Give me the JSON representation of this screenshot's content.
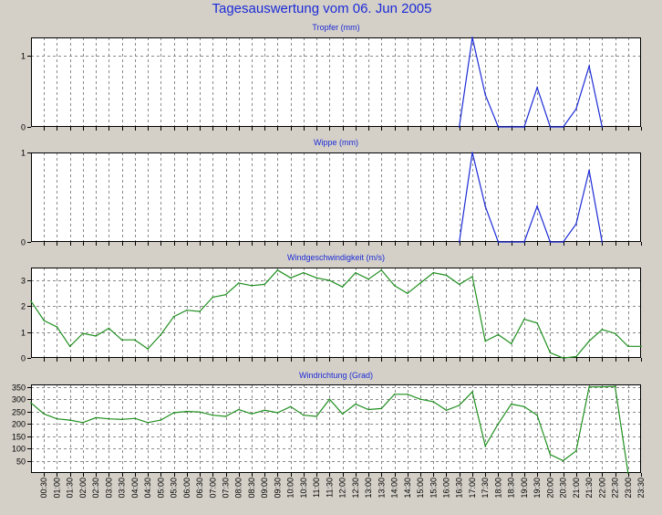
{
  "title": "Tagesauswertung vom 06. Jun 2005",
  "colors": {
    "background": "#d4d0c8",
    "plot_bg": "#ffffff",
    "title": "#1c2bd6",
    "series_blue": "#1c2bd6",
    "series_green": "#1f8f1f",
    "grid": "#8a8a8a"
  },
  "chart_data": [
    {
      "type": "line",
      "title": "Tropfer (mm)",
      "ylim": [
        0,
        1.25
      ],
      "yticks": [
        0,
        1
      ],
      "ytick_labels": [
        "0",
        "1"
      ],
      "grid": true,
      "color": "#1c2bd6",
      "points": [
        {
          "t": "16:30",
          "v": 0
        },
        {
          "t": "17:00",
          "v": 1.25
        },
        {
          "t": "17:30",
          "v": 0.45
        },
        {
          "t": "18:00",
          "v": 0
        },
        {
          "t": "19:00",
          "v": 0
        },
        {
          "t": "19:30",
          "v": 0.55
        },
        {
          "t": "20:00",
          "v": 0
        },
        {
          "t": "20:30",
          "v": 0
        },
        {
          "t": "21:00",
          "v": 0.25
        },
        {
          "t": "21:30",
          "v": 0.85
        },
        {
          "t": "22:00",
          "v": 0
        }
      ]
    },
    {
      "type": "line",
      "title": "Wippe (mm)",
      "ylim": [
        0,
        1
      ],
      "yticks": [
        0,
        1
      ],
      "ytick_labels": [
        "0",
        "1"
      ],
      "grid": true,
      "color": "#1c2bd6",
      "points": [
        {
          "t": "16:30",
          "v": 0
        },
        {
          "t": "17:00",
          "v": 1.0
        },
        {
          "t": "17:30",
          "v": 0.4
        },
        {
          "t": "18:00",
          "v": 0
        },
        {
          "t": "19:00",
          "v": 0
        },
        {
          "t": "19:30",
          "v": 0.4
        },
        {
          "t": "20:00",
          "v": 0
        },
        {
          "t": "20:30",
          "v": 0
        },
        {
          "t": "21:00",
          "v": 0.2
        },
        {
          "t": "21:30",
          "v": 0.8
        },
        {
          "t": "22:00",
          "v": 0
        }
      ]
    },
    {
      "type": "line",
      "title": "Windgeschwindigkeit (m/s)",
      "ylim": [
        0,
        3.5
      ],
      "yticks": [
        0,
        1,
        2,
        3
      ],
      "ytick_labels": [
        "0",
        "1",
        "2",
        "3"
      ],
      "grid": true,
      "color": "#1f8f1f",
      "points": [
        {
          "t": "00:00",
          "v": 2.2
        },
        {
          "t": "00:30",
          "v": 1.45
        },
        {
          "t": "01:00",
          "v": 1.2
        },
        {
          "t": "01:30",
          "v": 0.45
        },
        {
          "t": "02:00",
          "v": 0.95
        },
        {
          "t": "02:30",
          "v": 0.85
        },
        {
          "t": "03:00",
          "v": 1.15
        },
        {
          "t": "03:30",
          "v": 0.7
        },
        {
          "t": "04:00",
          "v": 0.7
        },
        {
          "t": "04:30",
          "v": 0.35
        },
        {
          "t": "05:00",
          "v": 0.9
        },
        {
          "t": "05:30",
          "v": 1.6
        },
        {
          "t": "06:00",
          "v": 1.85
        },
        {
          "t": "06:30",
          "v": 1.8
        },
        {
          "t": "07:00",
          "v": 2.35
        },
        {
          "t": "07:30",
          "v": 2.45
        },
        {
          "t": "08:00",
          "v": 2.9
        },
        {
          "t": "08:30",
          "v": 2.8
        },
        {
          "t": "09:00",
          "v": 2.85
        },
        {
          "t": "09:30",
          "v": 3.4
        },
        {
          "t": "10:00",
          "v": 3.1
        },
        {
          "t": "10:30",
          "v": 3.3
        },
        {
          "t": "11:00",
          "v": 3.1
        },
        {
          "t": "11:30",
          "v": 3.0
        },
        {
          "t": "12:00",
          "v": 2.75
        },
        {
          "t": "12:30",
          "v": 3.3
        },
        {
          "t": "13:00",
          "v": 3.05
        },
        {
          "t": "13:30",
          "v": 3.4
        },
        {
          "t": "14:00",
          "v": 2.8
        },
        {
          "t": "14:30",
          "v": 2.5
        },
        {
          "t": "15:00",
          "v": 2.9
        },
        {
          "t": "15:30",
          "v": 3.3
        },
        {
          "t": "16:00",
          "v": 3.2
        },
        {
          "t": "16:30",
          "v": 2.85
        },
        {
          "t": "17:00",
          "v": 3.15
        },
        {
          "t": "17:30",
          "v": 0.65
        },
        {
          "t": "18:00",
          "v": 0.9
        },
        {
          "t": "18:30",
          "v": 0.55
        },
        {
          "t": "19:00",
          "v": 1.5
        },
        {
          "t": "19:30",
          "v": 1.35
        },
        {
          "t": "20:00",
          "v": 0.2
        },
        {
          "t": "20:30",
          "v": 0.0
        },
        {
          "t": "21:00",
          "v": 0.05
        },
        {
          "t": "21:30",
          "v": 0.65
        },
        {
          "t": "22:00",
          "v": 1.1
        },
        {
          "t": "22:30",
          "v": 0.95
        },
        {
          "t": "23:00",
          "v": 0.45
        },
        {
          "t": "23:30",
          "v": 0.45
        }
      ]
    },
    {
      "type": "line",
      "title": "Windrichtung (Grad)",
      "ylim": [
        0,
        360
      ],
      "yticks": [
        50,
        100,
        150,
        200,
        250,
        300,
        350
      ],
      "ytick_labels": [
        "50",
        "100",
        "150",
        "200",
        "250",
        "300",
        "350"
      ],
      "grid": true,
      "color": "#1f8f1f",
      "points": [
        {
          "t": "00:00",
          "v": 285
        },
        {
          "t": "00:30",
          "v": 240
        },
        {
          "t": "01:00",
          "v": 220
        },
        {
          "t": "01:30",
          "v": 215
        },
        {
          "t": "02:00",
          "v": 205
        },
        {
          "t": "02:30",
          "v": 225
        },
        {
          "t": "03:00",
          "v": 220
        },
        {
          "t": "03:30",
          "v": 218
        },
        {
          "t": "04:00",
          "v": 222
        },
        {
          "t": "04:30",
          "v": 205
        },
        {
          "t": "05:00",
          "v": 215
        },
        {
          "t": "05:30",
          "v": 245
        },
        {
          "t": "06:00",
          "v": 250
        },
        {
          "t": "06:30",
          "v": 248
        },
        {
          "t": "07:00",
          "v": 235
        },
        {
          "t": "07:30",
          "v": 230
        },
        {
          "t": "08:00",
          "v": 258
        },
        {
          "t": "08:30",
          "v": 240
        },
        {
          "t": "09:00",
          "v": 255
        },
        {
          "t": "09:30",
          "v": 245
        },
        {
          "t": "10:00",
          "v": 270
        },
        {
          "t": "10:30",
          "v": 235
        },
        {
          "t": "11:00",
          "v": 230
        },
        {
          "t": "11:30",
          "v": 300
        },
        {
          "t": "12:00",
          "v": 240
        },
        {
          "t": "12:30",
          "v": 280
        },
        {
          "t": "13:00",
          "v": 258
        },
        {
          "t": "13:30",
          "v": 262
        },
        {
          "t": "14:00",
          "v": 320
        },
        {
          "t": "14:30",
          "v": 320
        },
        {
          "t": "15:00",
          "v": 300
        },
        {
          "t": "15:30",
          "v": 290
        },
        {
          "t": "16:00",
          "v": 255
        },
        {
          "t": "16:30",
          "v": 275
        },
        {
          "t": "17:00",
          "v": 330
        },
        {
          "t": "17:30",
          "v": 110
        },
        {
          "t": "18:00",
          "v": 200
        },
        {
          "t": "18:30",
          "v": 280
        },
        {
          "t": "19:00",
          "v": 270
        },
        {
          "t": "19:30",
          "v": 235
        },
        {
          "t": "20:00",
          "v": 75
        },
        {
          "t": "20:30",
          "v": 50
        },
        {
          "t": "21:00",
          "v": 90
        },
        {
          "t": "21:30",
          "v": 350
        },
        {
          "t": "22:00",
          "v": 350
        },
        {
          "t": "22:30",
          "v": 352
        },
        {
          "t": "23:00",
          "v": 0
        }
      ]
    }
  ],
  "x_axis": {
    "range": [
      "00:00",
      "23:30"
    ],
    "tick_labels": [
      "00:30",
      "01:00",
      "01:30",
      "02:00",
      "02:30",
      "03:00",
      "03:30",
      "04:00",
      "04:30",
      "05:00",
      "05:30",
      "06:00",
      "06:30",
      "07:00",
      "07:30",
      "08:00",
      "08:30",
      "09:00",
      "09:30",
      "10:00",
      "10:30",
      "11:00",
      "11:30",
      "12:00",
      "12:30",
      "13:00",
      "13:30",
      "14:00",
      "14:30",
      "15:00",
      "15:30",
      "16:00",
      "16:30",
      "17:00",
      "17:30",
      "18:00",
      "18:30",
      "19:00",
      "19:30",
      "20:00",
      "20:30",
      "21:00",
      "21:30",
      "22:00",
      "22:30",
      "23:00",
      "23:30"
    ]
  }
}
